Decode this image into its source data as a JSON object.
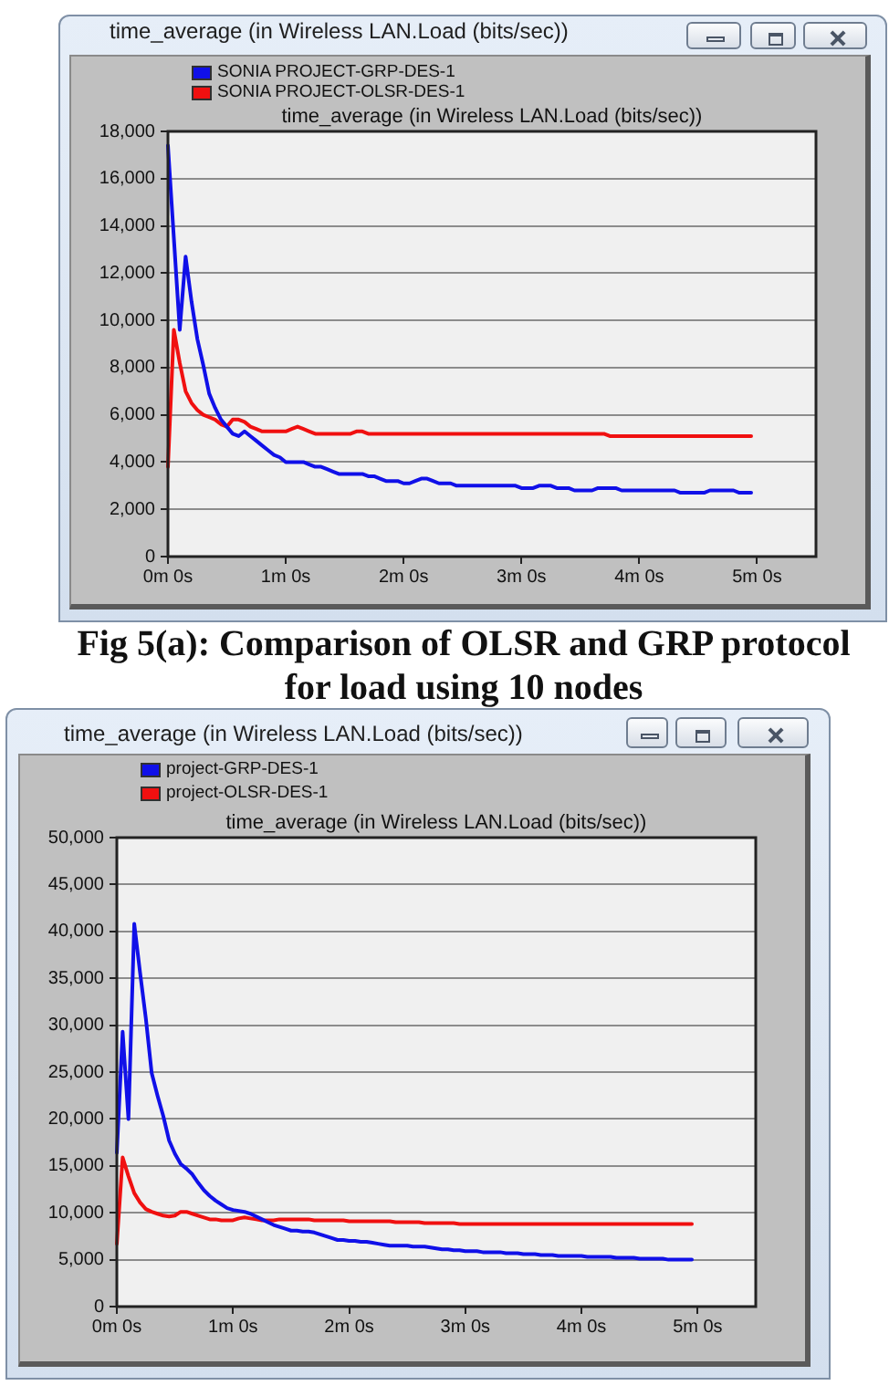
{
  "chart_data": [
    {
      "type": "line",
      "title": "time_average (in Wireless LAN.Load (bits/sec))",
      "subtitle": "time_average (in Wireless LAN.Load (bits/sec))",
      "categories": [
        "0m 0s",
        null,
        null,
        null,
        null,
        null,
        null,
        null,
        null,
        null,
        null,
        null,
        null,
        null,
        null,
        null,
        null,
        null,
        null,
        null,
        "1m 0s",
        null,
        null,
        null,
        null,
        null,
        null,
        null,
        null,
        null,
        null,
        null,
        null,
        null,
        null,
        null,
        null,
        null,
        null,
        null,
        "2m 0s",
        null,
        null,
        null,
        null,
        null,
        null,
        null,
        null,
        null,
        null,
        null,
        null,
        null,
        null,
        null,
        null,
        null,
        null,
        null,
        "3m 0s",
        null,
        null,
        null,
        null,
        null,
        null,
        null,
        null,
        null,
        null,
        null,
        null,
        null,
        null,
        null,
        null,
        null,
        null,
        null,
        "4m 0s",
        null,
        null,
        null,
        null,
        null,
        null,
        null,
        null,
        null,
        null,
        null,
        null,
        null,
        null,
        null,
        null,
        null,
        null,
        null,
        "5m 0s",
        null,
        null,
        null,
        null,
        null,
        null,
        null,
        null,
        null,
        null
      ],
      "series": [
        {
          "name": "SONIA PROJECT-GRP-DES-1",
          "color": "#1010e8",
          "values": [
            17400,
            13500,
            9600,
            12700,
            10800,
            9200,
            8100,
            6900,
            6300,
            5800,
            5500,
            5200,
            5100,
            5300,
            5100,
            4900,
            4700,
            4500,
            4300,
            4200,
            4000,
            4000,
            4000,
            4000,
            3900,
            3800,
            3800,
            3700,
            3600,
            3500,
            3500,
            3500,
            3500,
            3500,
            3400,
            3400,
            3300,
            3200,
            3200,
            3200,
            3100,
            3100,
            3200,
            3300,
            3300,
            3200,
            3100,
            3100,
            3100,
            3000,
            3000,
            3000,
            3000,
            3000,
            3000,
            3000,
            3000,
            3000,
            3000,
            3000,
            2900,
            2900,
            2900,
            3000,
            3000,
            3000,
            2900,
            2900,
            2900,
            2800,
            2800,
            2800,
            2800,
            2900,
            2900,
            2900,
            2900,
            2800,
            2800,
            2800,
            2800,
            2800,
            2800,
            2800,
            2800,
            2800,
            2800,
            2700,
            2700,
            2700,
            2700,
            2700,
            2800,
            2800,
            2800,
            2800,
            2800,
            2700,
            2700,
            2700,
            null,
            null,
            null,
            null,
            null,
            null,
            null,
            null,
            null,
            null,
            null
          ]
        },
        {
          "name": "SONIA PROJECT-OLSR-DES-1",
          "color": "#f01010",
          "values": [
            3800,
            9600,
            8200,
            7000,
            6500,
            6200,
            6000,
            5900,
            5800,
            5600,
            5500,
            5800,
            5800,
            5700,
            5500,
            5400,
            5300,
            5300,
            5300,
            5300,
            5300,
            5400,
            5500,
            5400,
            5300,
            5200,
            5200,
            5200,
            5200,
            5200,
            5200,
            5200,
            5300,
            5300,
            5200,
            5200,
            5200,
            5200,
            5200,
            5200,
            5200,
            5200,
            5200,
            5200,
            5200,
            5200,
            5200,
            5200,
            5200,
            5200,
            5200,
            5200,
            5200,
            5200,
            5200,
            5200,
            5200,
            5200,
            5200,
            5200,
            5200,
            5200,
            5200,
            5200,
            5200,
            5200,
            5200,
            5200,
            5200,
            5200,
            5200,
            5200,
            5200,
            5200,
            5200,
            5100,
            5100,
            5100,
            5100,
            5100,
            5100,
            5100,
            5100,
            5100,
            5100,
            5100,
            5100,
            5100,
            5100,
            5100,
            5100,
            5100,
            5100,
            5100,
            5100,
            5100,
            5100,
            5100,
            5100,
            5100,
            null,
            null,
            null,
            null,
            null,
            null,
            null,
            null,
            null,
            null,
            null
          ]
        }
      ],
      "ylim": [
        0,
        18000
      ],
      "yticks": [
        0,
        {
          "value": 2000,
          "label": "2,000"
        },
        {
          "value": 4000,
          "label": "4,000"
        },
        {
          "value": 6000,
          "label": "6,000"
        },
        {
          "value": 8000,
          "label": "8,000"
        },
        {
          "value": 10000,
          "label": "10,000"
        },
        {
          "value": 12000,
          "label": "12,000"
        },
        {
          "value": 14000,
          "label": "14,000"
        },
        {
          "value": 16000,
          "label": "16,000"
        },
        {
          "value": 18000,
          "label": "18,000"
        }
      ],
      "grid": "y",
      "legend": "top left",
      "line_style": "solid",
      "annotations": [
        "Fig 5(a): Comparison of OLSR and GRP protocol for load using 10 nodes"
      ]
    },
    {
      "type": "line",
      "title": "time_average (in Wireless LAN.Load (bits/sec))",
      "subtitle": "time_average (in Wireless LAN.Load (bits/sec))",
      "categories": [
        "0m 0s",
        null,
        null,
        null,
        null,
        null,
        null,
        null,
        null,
        null,
        null,
        null,
        null,
        null,
        null,
        null,
        null,
        null,
        null,
        null,
        "1m 0s",
        null,
        null,
        null,
        null,
        null,
        null,
        null,
        null,
        null,
        null,
        null,
        null,
        null,
        null,
        null,
        null,
        null,
        null,
        null,
        "2m 0s",
        null,
        null,
        null,
        null,
        null,
        null,
        null,
        null,
        null,
        null,
        null,
        null,
        null,
        null,
        null,
        null,
        null,
        null,
        null,
        "3m 0s",
        null,
        null,
        null,
        null,
        null,
        null,
        null,
        null,
        null,
        null,
        null,
        null,
        null,
        null,
        null,
        null,
        null,
        null,
        null,
        "4m 0s",
        null,
        null,
        null,
        null,
        null,
        null,
        null,
        null,
        null,
        null,
        null,
        null,
        null,
        null,
        null,
        null,
        null,
        null,
        null,
        "5m 0s",
        null,
        null,
        null,
        null,
        null,
        null,
        null,
        null,
        null,
        null
      ],
      "series": [
        {
          "name": "project-GRP-DES-1",
          "color": "#1010e8",
          "values": [
            16400,
            29300,
            20000,
            40800,
            35600,
            30700,
            24900,
            22500,
            20300,
            17700,
            16300,
            15200,
            14700,
            14100,
            13200,
            12400,
            11800,
            11300,
            10900,
            10500,
            10300,
            10200,
            10100,
            9900,
            9600,
            9300,
            9000,
            8700,
            8500,
            8300,
            8100,
            8100,
            8000,
            8000,
            7900,
            7700,
            7500,
            7300,
            7100,
            7100,
            7000,
            7000,
            6900,
            6900,
            6800,
            6700,
            6600,
            6500,
            6500,
            6500,
            6500,
            6400,
            6400,
            6400,
            6300,
            6200,
            6100,
            6100,
            6000,
            6000,
            5900,
            5900,
            5900,
            5800,
            5800,
            5800,
            5800,
            5700,
            5700,
            5700,
            5600,
            5600,
            5600,
            5500,
            5500,
            5500,
            5400,
            5400,
            5400,
            5400,
            5400,
            5300,
            5300,
            5300,
            5300,
            5300,
            5200,
            5200,
            5200,
            5200,
            5100,
            5100,
            5100,
            5100,
            5100,
            5000,
            5000,
            5000,
            5000,
            5000,
            null,
            null,
            null,
            null,
            null,
            null,
            null,
            null,
            null,
            null,
            null
          ]
        },
        {
          "name": "project-OLSR-DES-1",
          "color": "#f01010",
          "values": [
            6700,
            15900,
            13900,
            12100,
            11100,
            10400,
            10100,
            9900,
            9700,
            9600,
            9700,
            10100,
            10100,
            9900,
            9700,
            9500,
            9300,
            9300,
            9200,
            9200,
            9200,
            9400,
            9500,
            9400,
            9300,
            9200,
            9200,
            9200,
            9300,
            9300,
            9300,
            9300,
            9300,
            9300,
            9200,
            9200,
            9200,
            9200,
            9200,
            9200,
            9100,
            9100,
            9100,
            9100,
            9100,
            9100,
            9100,
            9100,
            9000,
            9000,
            9000,
            9000,
            9000,
            8900,
            8900,
            8900,
            8900,
            8900,
            8900,
            8800,
            8800,
            8800,
            8800,
            8800,
            8800,
            8800,
            8800,
            8800,
            8800,
            8800,
            8800,
            8800,
            8800,
            8800,
            8800,
            8800,
            8800,
            8800,
            8800,
            8800,
            8800,
            8800,
            8800,
            8800,
            8800,
            8800,
            8800,
            8800,
            8800,
            8800,
            8800,
            8800,
            8800,
            8800,
            8800,
            8800,
            8800,
            8800,
            8800,
            8800,
            null,
            null,
            null,
            null,
            null,
            null,
            null,
            null,
            null,
            null,
            null
          ]
        }
      ],
      "ylim": [
        0,
        50000
      ],
      "yticks": [
        0,
        {
          "value": 5000,
          "label": "5,000"
        },
        {
          "value": 10000,
          "label": "10,000"
        },
        {
          "value": 15000,
          "label": "15,000"
        },
        {
          "value": 20000,
          "label": "20,000"
        },
        {
          "value": 25000,
          "label": "25,000"
        },
        {
          "value": 30000,
          "label": "30,000"
        },
        {
          "value": 35000,
          "label": "35,000"
        },
        {
          "value": 40000,
          "label": "40,000"
        },
        {
          "value": 45000,
          "label": "45,000"
        },
        {
          "value": 50000,
          "label": "50,000"
        }
      ],
      "grid": "y",
      "legend": "top left",
      "line_style": "solid"
    }
  ]
}
